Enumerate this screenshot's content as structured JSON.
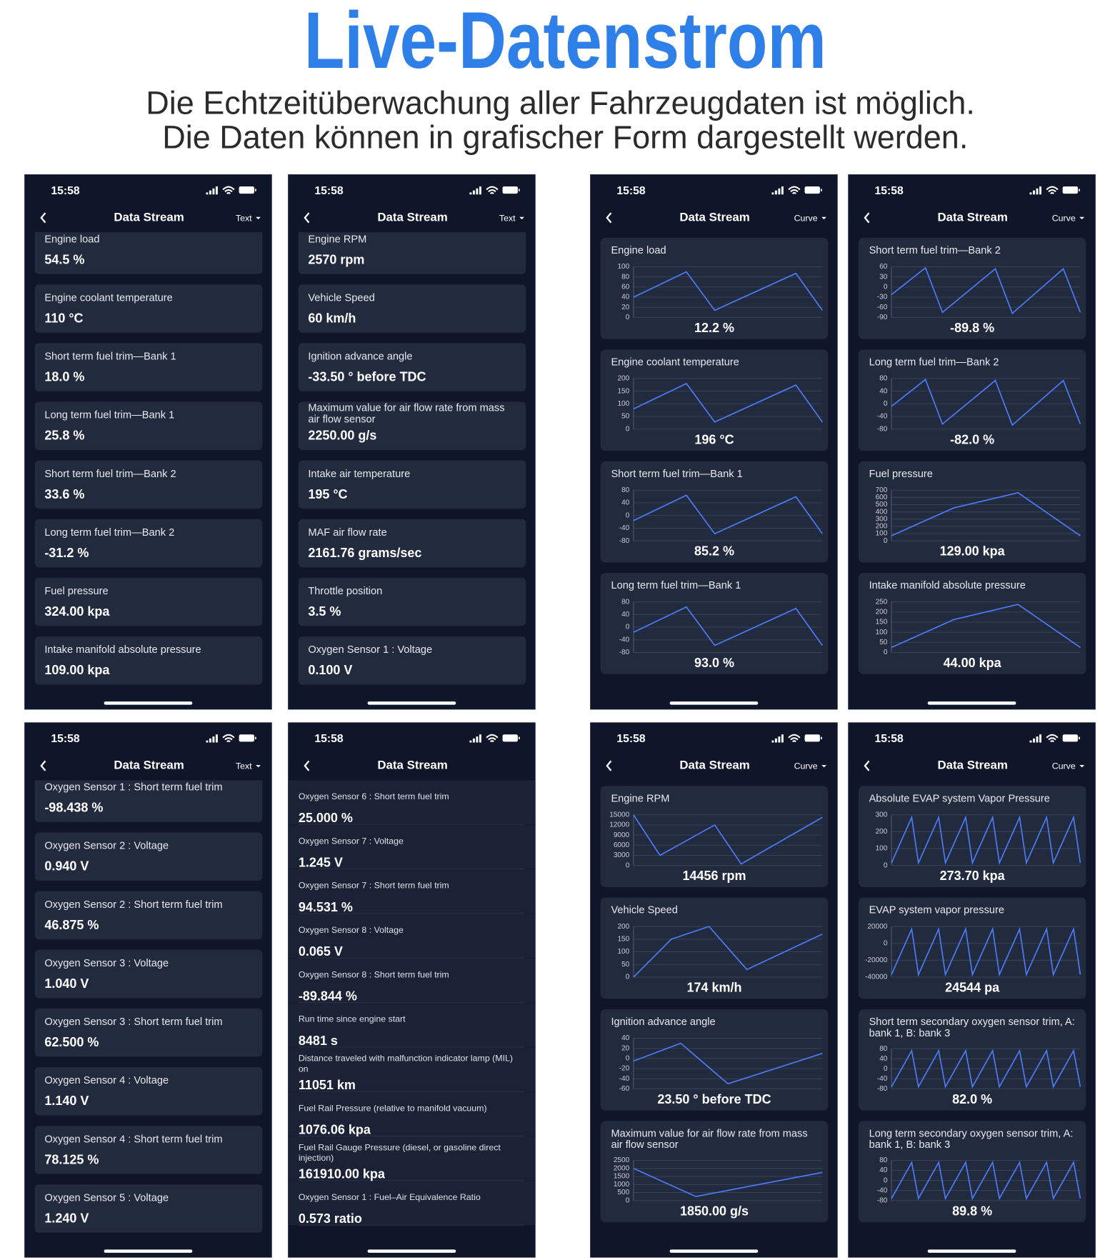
{
  "header": {
    "title": "Live-Datenstrom",
    "subtitle": [
      "Die Echtzeitüberwachung aller Fahrzeugdaten ist möglich.",
      "Die Daten können in grafischer Form dargestellt werden."
    ]
  },
  "phones": [
    {
      "time": "15:58",
      "title": "Data Stream",
      "mode": "Text",
      "items": [
        {
          "label": "Engine load",
          "value": "54.5 %"
        },
        {
          "label": "Engine coolant temperature",
          "value": "110 °C"
        },
        {
          "label": "Short term fuel trim—Bank 1",
          "value": "18.0 %"
        },
        {
          "label": "Long term fuel trim—Bank 1",
          "value": "25.8 %"
        },
        {
          "label": "Short term fuel trim—Bank 2",
          "value": "33.6 %"
        },
        {
          "label": "Long term fuel trim—Bank 2",
          "value": "-31.2 %"
        },
        {
          "label": "Fuel pressure",
          "value": "324.00 kpa"
        },
        {
          "label": "Intake manifold absolute pressure",
          "value": "109.00 kpa"
        }
      ]
    },
    {
      "time": "15:58",
      "title": "Data Stream",
      "mode": "Text",
      "items": [
        {
          "label": "Engine RPM",
          "value": "2570 rpm"
        },
        {
          "label": "Vehicle Speed",
          "value": "60 km/h"
        },
        {
          "label": "Ignition advance angle",
          "value": "-33.50 ° before TDC"
        },
        {
          "label": "Maximum value for air flow rate from mass air flow sensor",
          "value": "2250.00 g/s"
        },
        {
          "label": "Intake air temperature",
          "value": "195 °C"
        },
        {
          "label": "MAF air flow rate",
          "value": "2161.76 grams/sec"
        },
        {
          "label": "Throttle position",
          "value": "3.5 %"
        },
        {
          "label": "Oxygen Sensor 1 : Voltage",
          "value": "0.100 V"
        }
      ]
    },
    {
      "time": "15:58",
      "title": "Data Stream",
      "mode": "Curve",
      "items": [
        {
          "label": "Engine load",
          "value": "12.2 %",
          "ticks": [
            "100",
            "80",
            "60",
            "40",
            "20",
            "0"
          ]
        },
        {
          "label": "Engine coolant temperature",
          "value": "196 °C",
          "ticks": [
            "200",
            "150",
            "100",
            "50",
            "0"
          ]
        },
        {
          "label": "Short term fuel trim—Bank 1",
          "value": "85.2 %",
          "ticks": [
            "80",
            "40",
            "0",
            "-40",
            "-80"
          ]
        },
        {
          "label": "Long term fuel trim—Bank 1",
          "value": "93.0 %",
          "ticks": [
            "80",
            "40",
            "0",
            "-40",
            "-80"
          ]
        }
      ]
    },
    {
      "time": "15:58",
      "title": "Data Stream",
      "mode": "Curve",
      "items": [
        {
          "label": "Short term fuel trim—Bank 2",
          "value": "-89.8 %",
          "ticks": [
            "60",
            "30",
            "0",
            "-30",
            "-60",
            "-90"
          ]
        },
        {
          "label": "Long term fuel trim—Bank 2",
          "value": "-82.0 %",
          "ticks": [
            "80",
            "40",
            "0",
            "-40",
            "-80"
          ]
        },
        {
          "label": "Fuel pressure",
          "value": "129.00 kpa",
          "ticks": [
            "700",
            "600",
            "500",
            "400",
            "300",
            "200",
            "100",
            "0"
          ]
        },
        {
          "label": "Intake manifold absolute pressure",
          "value": "44.00 kpa",
          "ticks": [
            "250",
            "200",
            "150",
            "100",
            "50",
            "0"
          ]
        }
      ]
    },
    {
      "time": "15:58",
      "title": "Data Stream",
      "mode": "Text",
      "items": [
        {
          "label": "Oxygen Sensor 1 : Short term fuel trim",
          "value": "-98.438 %"
        },
        {
          "label": "Oxygen Sensor 2 : Voltage",
          "value": "0.940 V"
        },
        {
          "label": "Oxygen Sensor 2 : Short term fuel trim",
          "value": "46.875 %"
        },
        {
          "label": "Oxygen Sensor 3 : Voltage",
          "value": "1.040 V"
        },
        {
          "label": "Oxygen Sensor 3 : Short term fuel trim",
          "value": "62.500 %"
        },
        {
          "label": "Oxygen Sensor 4 : Voltage",
          "value": "1.140 V"
        },
        {
          "label": "Oxygen Sensor 4 : Short term fuel trim",
          "value": "78.125 %"
        },
        {
          "label": "Oxygen Sensor 5 : Voltage",
          "value": "1.240 V"
        }
      ]
    },
    {
      "time": "15:58",
      "title": "Data Stream",
      "items": [
        {
          "label": "Oxygen Sensor 6 : Short term fuel trim",
          "value": "25.000 %"
        },
        {
          "label": "Oxygen Sensor 7 : Voltage",
          "value": "1.245 V"
        },
        {
          "label": "Oxygen Sensor 7 : Short term fuel trim",
          "value": "94.531 %"
        },
        {
          "label": "Oxygen Sensor 8 : Voltage",
          "value": "0.065 V"
        },
        {
          "label": "Oxygen Sensor 8 : Short term fuel trim",
          "value": "-89.844 %"
        },
        {
          "label": "Run time since engine start",
          "value": "8481 s"
        },
        {
          "label": "Distance traveled with malfunction indicator lamp (MIL) on",
          "value": "11051 km"
        },
        {
          "label": "Fuel Rail Pressure (relative to manifold vacuum)",
          "value": "1076.06 kpa"
        },
        {
          "label": "Fuel Rail Gauge Pressure (diesel, or gasoline direct injection)",
          "value": "161910.00 kpa"
        },
        {
          "label": "Oxygen Sensor 1 : Fuel–Air Equivalence Ratio",
          "value": "0.573 ratio"
        }
      ]
    },
    {
      "time": "15:58",
      "title": "Data Stream",
      "mode": "Curve",
      "items": [
        {
          "label": "Engine RPM",
          "value": "14456 rpm",
          "ticks": [
            "15000",
            "12000",
            "9000",
            "6000",
            "3000",
            "0"
          ]
        },
        {
          "label": "Vehicle Speed",
          "value": "174 km/h",
          "ticks": [
            "200",
            "150",
            "100",
            "50",
            "0"
          ]
        },
        {
          "label": "Ignition advance angle",
          "value": "23.50 ° before TDC",
          "ticks": [
            "40",
            "20",
            "0",
            "-20",
            "-40",
            "-60"
          ]
        },
        {
          "label": "Maximum value for air flow rate from mass air flow sensor",
          "value": "1850.00 g/s",
          "ticks": [
            "2500",
            "2000",
            "1500",
            "1000",
            "500",
            "0"
          ]
        }
      ]
    },
    {
      "time": "15:58",
      "title": "Data Stream",
      "mode": "Curve",
      "items": [
        {
          "label": "Absolute EVAP system Vapor Pressure",
          "value": "273.70 kpa",
          "ticks": [
            "300",
            "200",
            "100",
            "0"
          ]
        },
        {
          "label": "EVAP system vapor pressure",
          "value": "24544 pa",
          "ticks": [
            "20000",
            "0",
            "-20000",
            "-40000"
          ]
        },
        {
          "label": "Short term secondary oxygen sensor trim, A: bank 1, B: bank 3",
          "value": "82.0 %",
          "ticks": [
            "80",
            "40",
            "0",
            "-40",
            "-80"
          ]
        },
        {
          "label": "Long term secondary oxygen sensor trim, A: bank 1, B: bank 3",
          "value": "89.8 %",
          "ticks": [
            "80",
            "40",
            "0",
            "-40",
            "-80"
          ]
        }
      ]
    }
  ]
}
